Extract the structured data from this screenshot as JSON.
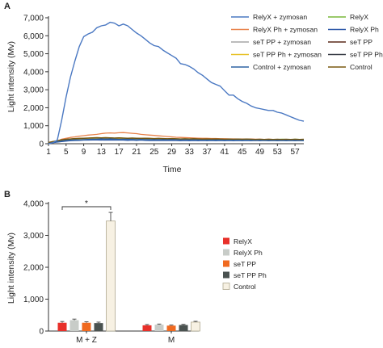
{
  "chart_data": [
    {
      "panel": "A",
      "type": "line",
      "xlabel": "Time",
      "ylabel": "Light intensity (Mv)",
      "xlim": [
        1,
        59
      ],
      "ylim": [
        0,
        7000
      ],
      "x_ticks": [
        1,
        5,
        9,
        13,
        17,
        21,
        25,
        29,
        33,
        37,
        41,
        45,
        49,
        53,
        57
      ],
      "y_ticks": [
        "0",
        "1,000",
        "2,000",
        "3,000",
        "4,000",
        "5,000",
        "6,000",
        "7,000"
      ],
      "y_tick_values": [
        0,
        1000,
        2000,
        3000,
        4000,
        5000,
        6000,
        7000
      ],
      "legend_position": "top-right",
      "x": [
        1,
        2,
        3,
        4,
        5,
        6,
        7,
        8,
        9,
        10,
        11,
        12,
        13,
        14,
        15,
        16,
        17,
        18,
        19,
        20,
        21,
        22,
        23,
        24,
        25,
        26,
        27,
        28,
        29,
        30,
        31,
        32,
        33,
        34,
        35,
        36,
        37,
        38,
        39,
        40,
        41,
        42,
        43,
        44,
        45,
        46,
        47,
        48,
        49,
        50,
        51,
        52,
        53,
        54,
        55,
        56,
        57,
        58,
        59
      ],
      "series": [
        {
          "name": "RelyX + zymosan",
          "color": "#4a78c2",
          "values": [
            0,
            50,
            200,
            1300,
            2600,
            3700,
            4600,
            5400,
            5950,
            6100,
            6200,
            6450,
            6550,
            6600,
            6750,
            6700,
            6550,
            6650,
            6550,
            6350,
            6150,
            6000,
            5800,
            5600,
            5450,
            5400,
            5200,
            5050,
            4900,
            4750,
            4450,
            4400,
            4300,
            4150,
            3950,
            3800,
            3600,
            3400,
            3300,
            3200,
            2950,
            2700,
            2700,
            2500,
            2350,
            2250,
            2100,
            2000,
            1950,
            1900,
            1850,
            1850,
            1750,
            1700,
            1600,
            1500,
            1400,
            1300,
            1250
          ]
        },
        {
          "name": "RelyX",
          "color": "#78b83a",
          "values": [
            50,
            80,
            120,
            180,
            200,
            230,
            250,
            260,
            280,
            290,
            300,
            300,
            310,
            300,
            310,
            300,
            290,
            300,
            290,
            280,
            280,
            270,
            260,
            270,
            260,
            250,
            250,
            260,
            250,
            240,
            230,
            240,
            230,
            240,
            230,
            220,
            230,
            220,
            230,
            240,
            220,
            230,
            220,
            230,
            220,
            240,
            230,
            220,
            230,
            240,
            230,
            240,
            230,
            250,
            240,
            230,
            250,
            240,
            230
          ]
        },
        {
          "name": "RelyX Ph + zymosan",
          "color": "#e8824a",
          "values": [
            50,
            100,
            150,
            250,
            300,
            350,
            380,
            420,
            450,
            480,
            500,
            520,
            560,
            590,
            600,
            590,
            610,
            620,
            600,
            580,
            560,
            520,
            500,
            480,
            460,
            440,
            420,
            400,
            380,
            360,
            350,
            340,
            330,
            320,
            310,
            300,
            300,
            290,
            290,
            280,
            280,
            270,
            270,
            260,
            260,
            250,
            260,
            250,
            250,
            240,
            250,
            240,
            240,
            230,
            240,
            230,
            230,
            220,
            230
          ]
        },
        {
          "name": "RelyX Ph",
          "color": "#2a56a8",
          "values": [
            40,
            60,
            90,
            120,
            150,
            170,
            180,
            190,
            200,
            200,
            210,
            210,
            200,
            210,
            200,
            210,
            200,
            200,
            190,
            200,
            190,
            200,
            190,
            180,
            190,
            180,
            190,
            180,
            190,
            180,
            170,
            180,
            170,
            180,
            170,
            180,
            170,
            180,
            170,
            180,
            170,
            180,
            170,
            180,
            170,
            180,
            170,
            180,
            170,
            180,
            170,
            180,
            170,
            180,
            170,
            180,
            170,
            180,
            170
          ]
        },
        {
          "name": "seT PP + zymosan",
          "color": "#a6a6a6",
          "values": [
            40,
            80,
            120,
            160,
            190,
            210,
            230,
            240,
            250,
            260,
            270,
            280,
            290,
            300,
            310,
            300,
            290,
            300,
            290,
            280,
            270,
            270,
            260,
            260,
            250,
            250,
            240,
            250,
            240,
            240,
            230,
            240,
            230,
            230,
            220,
            230,
            220,
            230,
            220,
            220,
            210,
            220,
            210,
            220,
            210,
            220,
            210,
            210,
            200,
            210,
            200,
            210,
            200,
            200,
            200,
            200,
            200,
            200,
            190
          ]
        },
        {
          "name": "seT PP",
          "color": "#5a2a1a",
          "values": [
            60,
            100,
            150,
            200,
            230,
            250,
            260,
            270,
            280,
            290,
            300,
            310,
            320,
            310,
            320,
            310,
            300,
            310,
            300,
            290,
            280,
            290,
            280,
            270,
            280,
            270,
            260,
            270,
            260,
            250,
            260,
            250,
            240,
            250,
            240,
            250,
            240,
            250,
            240,
            230,
            240,
            230,
            240,
            230,
            240,
            230,
            240,
            230,
            220,
            230,
            220,
            230,
            220,
            230,
            220,
            230,
            220,
            230,
            220
          ]
        },
        {
          "name": "seT PP Ph + zymosan",
          "color": "#e8c22a",
          "values": [
            50,
            90,
            130,
            170,
            200,
            220,
            240,
            250,
            270,
            280,
            290,
            300,
            310,
            320,
            300,
            310,
            300,
            290,
            300,
            290,
            280,
            270,
            280,
            270,
            260,
            270,
            260,
            250,
            260,
            250,
            240,
            250,
            240,
            230,
            240,
            230,
            240,
            230,
            220,
            230,
            220,
            230,
            220,
            210,
            220,
            210,
            220,
            210,
            200,
            210,
            200,
            210,
            200,
            200,
            200,
            200,
            190,
            200,
            190
          ]
        },
        {
          "name": "seT PP Ph",
          "color": "#3a3f48",
          "values": [
            60,
            110,
            160,
            210,
            240,
            260,
            280,
            290,
            300,
            310,
            320,
            330,
            320,
            330,
            320,
            310,
            320,
            310,
            300,
            310,
            300,
            290,
            300,
            290,
            280,
            290,
            280,
            270,
            280,
            270,
            260,
            270,
            260,
            270,
            260,
            250,
            260,
            250,
            260,
            250,
            240,
            250,
            240,
            250,
            240,
            250,
            240,
            230,
            240,
            230,
            240,
            230,
            240,
            230,
            240,
            230,
            240,
            230,
            240
          ]
        },
        {
          "name": "Control + zymosan",
          "color": "#2f64a4",
          "values": [
            40,
            70,
            110,
            150,
            180,
            200,
            210,
            220,
            230,
            240,
            250,
            250,
            260,
            250,
            260,
            250,
            240,
            250,
            240,
            240,
            230,
            240,
            230,
            230,
            220,
            230,
            220,
            230,
            220,
            220,
            210,
            220,
            210,
            220,
            210,
            210,
            200,
            210,
            200,
            210,
            200,
            210,
            200,
            200,
            190,
            200,
            190,
            200,
            190,
            190,
            180,
            190,
            180,
            190,
            180,
            190,
            180,
            180,
            180
          ]
        },
        {
          "name": "Control",
          "color": "#7a5a10",
          "values": [
            70,
            120,
            170,
            220,
            250,
            270,
            290,
            300,
            310,
            320,
            330,
            340,
            330,
            340,
            330,
            320,
            330,
            320,
            310,
            320,
            310,
            300,
            310,
            300,
            290,
            300,
            290,
            280,
            290,
            280,
            270,
            280,
            270,
            280,
            270,
            260,
            270,
            260,
            270,
            260,
            250,
            260,
            250,
            260,
            250,
            260,
            250,
            240,
            250,
            240,
            250,
            240,
            250,
            240,
            250,
            240,
            250,
            240,
            250
          ]
        }
      ]
    },
    {
      "panel": "B",
      "type": "bar",
      "xlabel": "",
      "ylabel": "Light intensity (Mv)",
      "ylim": [
        0,
        4000
      ],
      "y_ticks": [
        "0",
        "1,000",
        "2,000",
        "3,000",
        "4,000"
      ],
      "y_tick_values": [
        0,
        1000,
        2000,
        3000,
        4000
      ],
      "categories": [
        "M + Z",
        "M"
      ],
      "legend_position": "right",
      "annotation": "*",
      "series": [
        {
          "name": "RelyX",
          "color": "#e8302a",
          "values": [
            260,
            180
          ],
          "errors": [
            40,
            25
          ]
        },
        {
          "name": "RelyX Ph",
          "color": "#c8ccc8",
          "values": [
            340,
            200
          ],
          "errors": [
            35,
            20
          ]
        },
        {
          "name": "seT PP",
          "color": "#f06a20",
          "values": [
            260,
            170
          ],
          "errors": [
            30,
            20
          ]
        },
        {
          "name": "seT PP Ph",
          "color": "#4a5250",
          "values": [
            250,
            190
          ],
          "errors": [
            30,
            20
          ]
        },
        {
          "name": "Control",
          "color": "#f7f1e3",
          "values": [
            3450,
            280
          ],
          "errors": [
            270,
            25
          ]
        }
      ]
    }
  ]
}
